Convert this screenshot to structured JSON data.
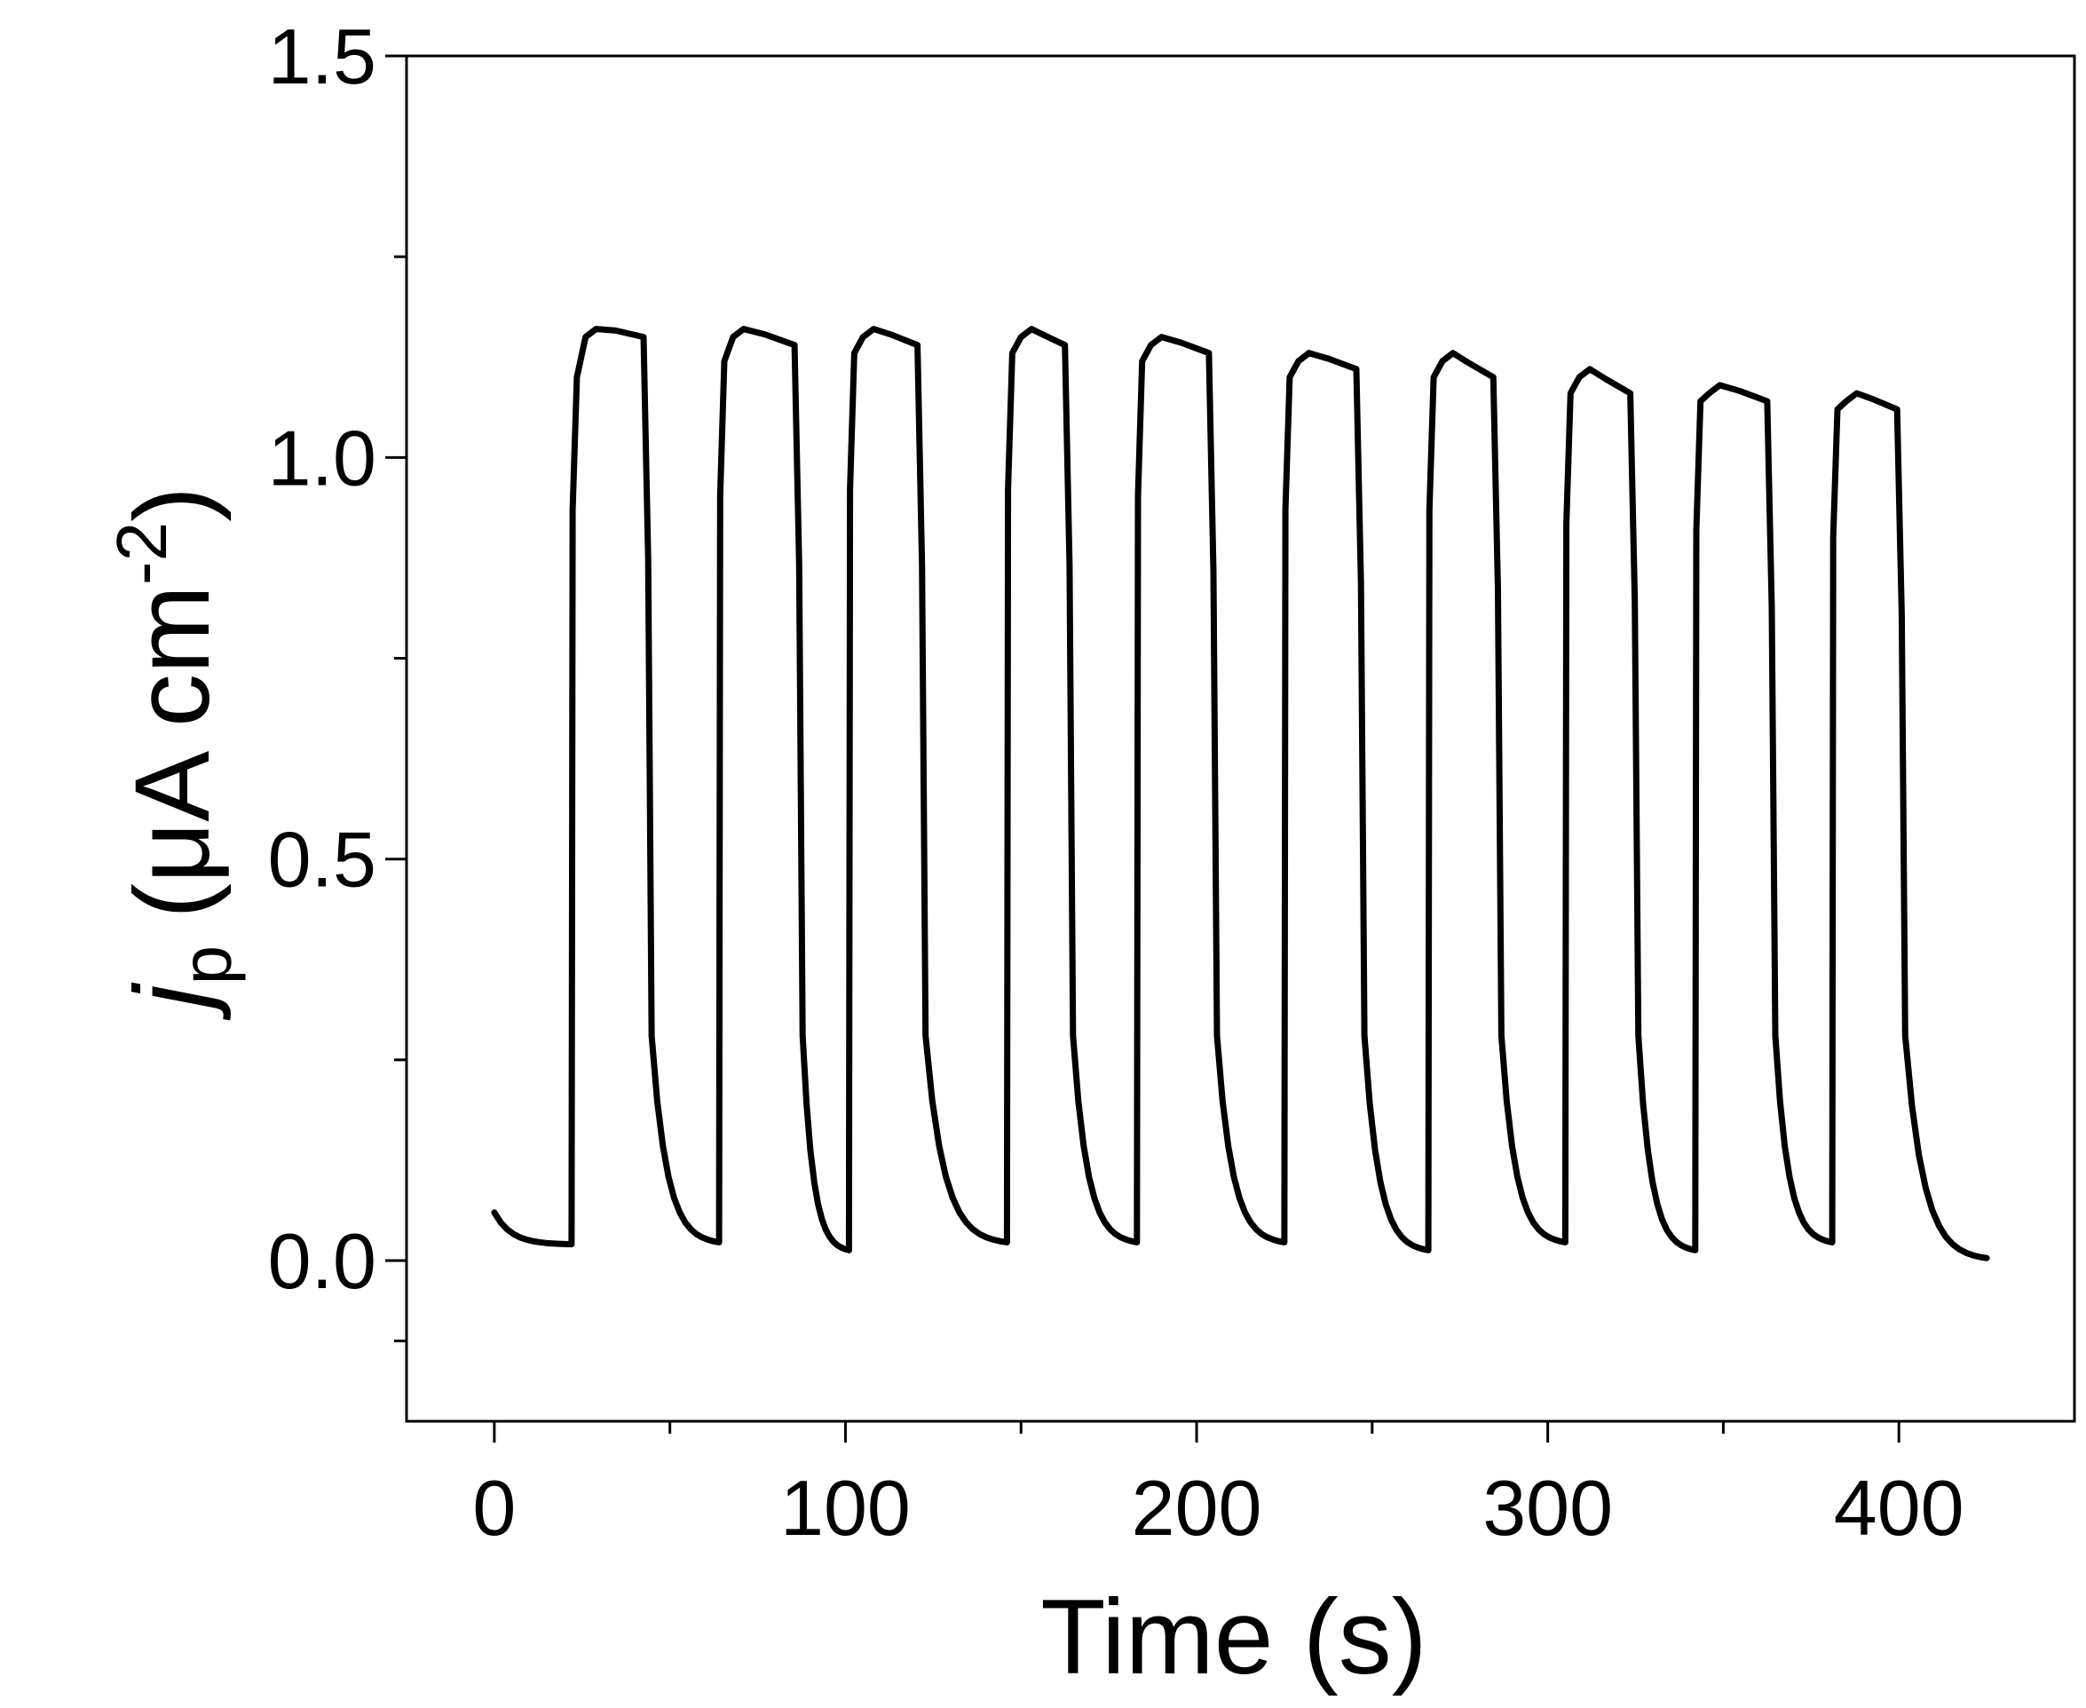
{
  "chart_data": {
    "type": "line",
    "title": "",
    "xlabel": "Time (s)",
    "ylabel": {
      "symbol": "j",
      "subscript": "p",
      "unit": "(μA cm",
      "superscript": "-2",
      "close": ")"
    },
    "xlim": [
      -25,
      450
    ],
    "ylim": [
      -0.2,
      1.5
    ],
    "x_ticks": [
      0,
      100,
      200,
      300,
      400
    ],
    "x_tick_labels": [
      "0",
      "100",
      "200",
      "300",
      "400"
    ],
    "x_minor_ticks": [
      50,
      150,
      250,
      350
    ],
    "y_ticks": [
      0.0,
      0.5,
      1.0,
      1.5
    ],
    "y_tick_labels": [
      "0.0",
      "0.5",
      "1.0",
      "1.5"
    ],
    "y_minor_ticks": [
      -0.1,
      0.25,
      0.75,
      1.25
    ],
    "grid": false,
    "legend": "none",
    "line_color": "#000000",
    "series": [
      {
        "on_off_cycles": [
          {
            "on": 22,
            "off": 43,
            "start_level": 1.1,
            "peak": 1.16,
            "end_level": 1.15,
            "baseline_end": 0.02
          },
          {
            "on": 64,
            "off": 86,
            "start_level": 1.12,
            "peak": 1.16,
            "end_level": 1.14,
            "baseline_end": 0.01
          },
          {
            "on": 101,
            "off": 121,
            "start_level": 1.13,
            "peak": 1.16,
            "end_level": 1.14,
            "baseline_end": 0.02
          },
          {
            "on": 146,
            "off": 163,
            "start_level": 1.13,
            "peak": 1.16,
            "end_level": 1.14,
            "baseline_end": 0.02
          },
          {
            "on": 183,
            "off": 204,
            "start_level": 1.12,
            "peak": 1.15,
            "end_level": 1.13,
            "baseline_end": 0.02
          },
          {
            "on": 225,
            "off": 246,
            "start_level": 1.1,
            "peak": 1.13,
            "end_level": 1.11,
            "baseline_end": 0.01
          },
          {
            "on": 266,
            "off": 285,
            "start_level": 1.1,
            "peak": 1.13,
            "end_level": 1.1,
            "baseline_end": 0.02
          },
          {
            "on": 305,
            "off": 324,
            "start_level": 1.08,
            "peak": 1.11,
            "end_level": 1.08,
            "baseline_end": 0.01
          },
          {
            "on": 342,
            "off": 363,
            "start_level": 1.07,
            "peak": 1.09,
            "end_level": 1.07,
            "baseline_end": 0.02
          },
          {
            "on": 381,
            "off": 400,
            "start_level": 1.06,
            "peak": 1.08,
            "end_level": 1.06,
            "baseline_end": 0.0
          }
        ],
        "x_start": 0,
        "y_start": 0.06,
        "x_end": 425,
        "y_end": 0.0
      }
    ]
  }
}
